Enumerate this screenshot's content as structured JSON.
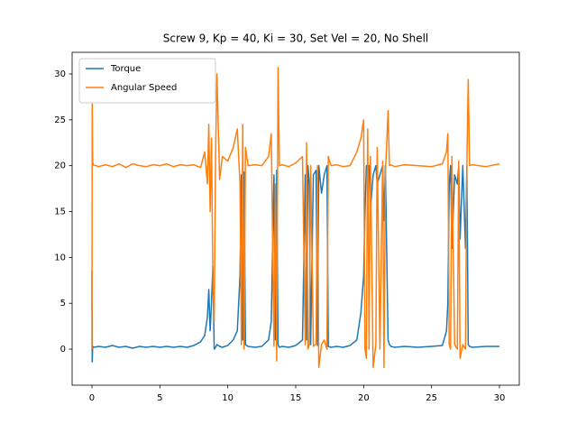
{
  "chart_data": {
    "type": "line",
    "title": "Screw 9, Kp = 40, Ki = 30, Set Vel = 20, No Shell",
    "x": [
      0,
      0.02,
      0.05,
      0.1,
      0.5,
      1,
      1.5,
      2,
      2.5,
      3,
      3.5,
      4,
      4.5,
      5,
      5.5,
      6,
      6.5,
      7,
      7.5,
      8,
      8.3,
      8.5,
      8.6,
      8.7,
      8.8,
      8.9,
      9.0,
      9.1,
      9.2,
      9.4,
      9.6,
      10,
      10.4,
      10.7,
      10.9,
      11.0,
      11.1,
      11.2,
      11.3,
      11.5,
      12,
      12.5,
      13,
      13.2,
      13.4,
      13.5,
      13.6,
      13.7,
      13.8,
      14,
      14.5,
      15,
      15.5,
      15.7,
      15.8,
      15.9,
      16.0,
      16.1,
      16.3,
      16.5,
      16.6,
      16.7,
      16.9,
      17.1,
      17.3,
      17.4,
      17.6,
      18,
      18.5,
      19,
      19.5,
      19.8,
      20.0,
      20.1,
      20.2,
      20.3,
      20.4,
      20.5,
      20.7,
      20.9,
      21.0,
      21.2,
      21.4,
      21.5,
      21.6,
      21.8,
      21.9,
      22.0,
      22.3,
      23,
      24,
      25,
      25.8,
      26.1,
      26.2,
      26.3,
      26.4,
      26.5,
      26.7,
      26.9,
      27.0,
      27.1,
      27.3,
      27.5,
      27.6,
      27.7,
      27.8,
      28,
      29,
      30
    ],
    "series": [
      {
        "name": "Torque",
        "color": "#1f77b4",
        "values": [
          8.5,
          -1.4,
          0.3,
          0.2,
          0.3,
          0.2,
          0.4,
          0.2,
          0.3,
          0.1,
          0.3,
          0.2,
          0.3,
          0.2,
          0.3,
          0.2,
          0.3,
          0.2,
          0.4,
          0.8,
          1.5,
          3.5,
          6.5,
          2,
          5,
          9,
          0,
          0.2,
          0.5,
          0.3,
          0.2,
          0.4,
          1,
          2,
          8,
          19,
          1,
          19.3,
          0.5,
          0.3,
          0.2,
          0.3,
          1,
          3,
          19,
          1,
          19.5,
          0.5,
          0.2,
          0.3,
          0.2,
          0.4,
          1,
          19,
          1,
          20,
          18,
          0.5,
          19,
          19.5,
          0.4,
          20,
          17,
          19,
          20,
          0.3,
          0.2,
          0.3,
          0.2,
          0.4,
          1,
          4,
          8,
          15,
          20,
          19.5,
          20,
          15,
          19,
          20,
          18,
          19,
          20,
          14,
          20,
          1,
          0.5,
          0.3,
          0.2,
          0.3,
          0.2,
          0.3,
          0.4,
          2,
          5,
          18,
          20,
          11,
          19,
          18,
          20,
          12,
          20,
          11,
          20,
          0.5,
          0.3,
          0.2,
          0.3,
          0.3
        ]
      },
      {
        "name": "Angular Speed",
        "color": "#ff7f0e",
        "values": [
          0,
          26.7,
          20.5,
          20.1,
          19.9,
          20.1,
          19.9,
          20.2,
          19.8,
          20.2,
          20,
          19.9,
          20.1,
          20,
          20.2,
          19.9,
          20.1,
          20,
          20.1,
          19.8,
          21.5,
          18,
          24.5,
          15,
          23,
          8,
          3,
          21,
          30,
          18.5,
          21,
          20.5,
          22,
          24,
          18,
          0.5,
          24.5,
          0,
          22,
          20,
          20.1,
          20,
          21,
          23.5,
          0.3,
          18,
          -1.3,
          30.7,
          20,
          20.1,
          19.9,
          20.3,
          21,
          0.5,
          22.5,
          0,
          0.5,
          20,
          0.3,
          0.6,
          20,
          -2,
          0.5,
          1,
          0,
          21,
          20,
          20.1,
          19.9,
          20,
          21.5,
          23,
          25,
          0,
          -1,
          24,
          0,
          21,
          -2,
          0.5,
          22,
          0,
          20.5,
          -2,
          19,
          26,
          20,
          20.1,
          19.9,
          20.1,
          20,
          19.9,
          20.2,
          21.5,
          23.5,
          0.5,
          0,
          21,
          0.5,
          0,
          20.5,
          -1,
          0.5,
          0,
          20,
          29.4,
          20,
          20.1,
          19.9,
          20.2
        ]
      }
    ],
    "xlim": [
      -1.46,
      31.46
    ],
    "xticks": [
      0,
      5,
      10,
      15,
      20,
      25,
      30
    ],
    "ylim": [
      -3.93,
      32.36
    ],
    "yticks": [
      0,
      5,
      10,
      15,
      20,
      25,
      30
    ],
    "legend": "upper left"
  }
}
